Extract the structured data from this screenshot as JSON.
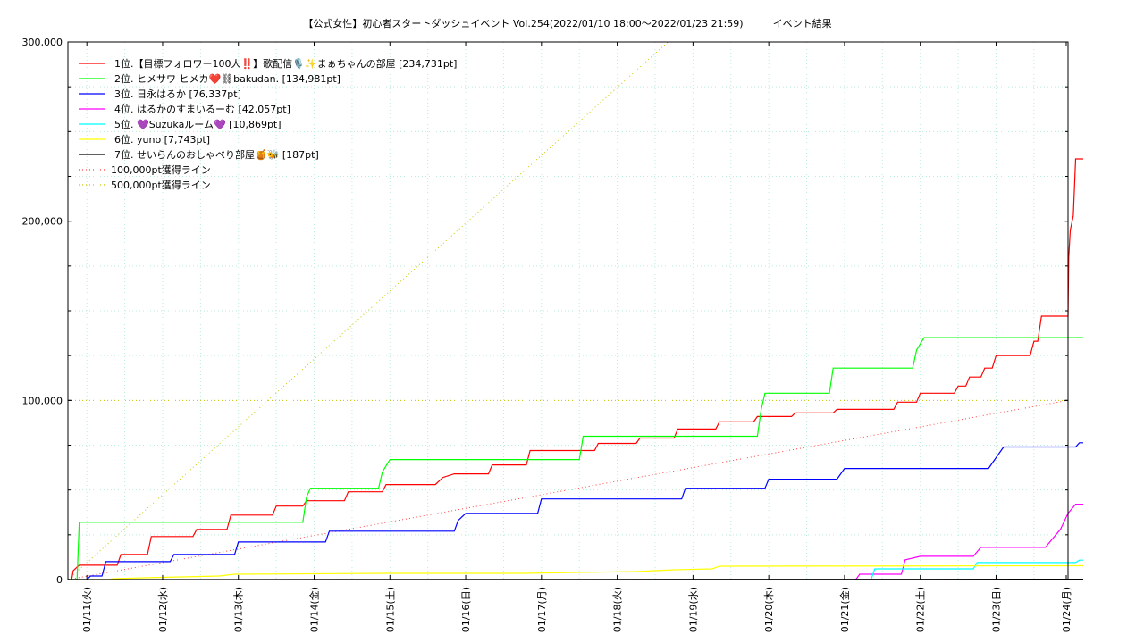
{
  "chart_data": {
    "type": "line",
    "title": "【公式女性】初心者スタートダッシュイベント Vol.254(2022/01/10 18:00～2022/01/23 21:59)　　　イベント結果",
    "x_range_days": [
      0,
      13.2
    ],
    "ylim": [
      0,
      300000
    ],
    "y_ticks": [
      0,
      100000,
      200000,
      300000
    ],
    "y_tick_labels": [
      "0",
      "100,000",
      "200,000",
      "300,000"
    ],
    "x_tick_labels": [
      "01/11(火)",
      "01/12(水)",
      "01/13(木)",
      "01/14(金)",
      "01/15(土)",
      "01/16(日)",
      "01/17(月)",
      "01/18(火)",
      "01/19(水)",
      "01/20(木)",
      "01/21(金)",
      "01/22(土)",
      "01/23(日)",
      "01/24(月)"
    ],
    "x_tick_days": [
      0.25,
      1.25,
      2.25,
      3.25,
      4.25,
      5.25,
      6.25,
      7.25,
      8.25,
      9.25,
      10.25,
      11.25,
      12.25,
      13.25
    ],
    "grid": true,
    "legend_position": "top-left",
    "series": [
      {
        "name": "1位.【目標フォロワー100人‼️】歌配信🎙️✨まぁちゃんの部屋 [234,731pt]",
        "color": "#ff0000",
        "points": [
          [
            0,
            0
          ],
          [
            0.05,
            0
          ],
          [
            0.07,
            5000
          ],
          [
            0.12,
            7000
          ],
          [
            0.15,
            8000
          ],
          [
            0.65,
            8000
          ],
          [
            0.7,
            14000
          ],
          [
            1.05,
            14000
          ],
          [
            1.1,
            24000
          ],
          [
            1.65,
            24000
          ],
          [
            1.7,
            28000
          ],
          [
            2.1,
            28000
          ],
          [
            2.15,
            36000
          ],
          [
            2.7,
            36000
          ],
          [
            2.75,
            41000
          ],
          [
            3.1,
            41000
          ],
          [
            3.15,
            44000
          ],
          [
            3.65,
            44000
          ],
          [
            3.7,
            49000
          ],
          [
            4.15,
            49000
          ],
          [
            4.2,
            53000
          ],
          [
            4.85,
            53000
          ],
          [
            4.95,
            57000
          ],
          [
            5.1,
            59000
          ],
          [
            5.55,
            59000
          ],
          [
            5.6,
            64000
          ],
          [
            6.05,
            64000
          ],
          [
            6.1,
            72000
          ],
          [
            6.95,
            72000
          ],
          [
            7.0,
            76000
          ],
          [
            7.5,
            76000
          ],
          [
            7.55,
            79000
          ],
          [
            8.0,
            79000
          ],
          [
            8.05,
            84000
          ],
          [
            8.55,
            84000
          ],
          [
            8.6,
            88000
          ],
          [
            9.05,
            88000
          ],
          [
            9.1,
            91000
          ],
          [
            9.55,
            91000
          ],
          [
            9.6,
            93000
          ],
          [
            10.1,
            93000
          ],
          [
            10.15,
            95000
          ],
          [
            10.9,
            95000
          ],
          [
            10.95,
            99000
          ],
          [
            11.2,
            99000
          ],
          [
            11.25,
            104000
          ],
          [
            11.7,
            104000
          ],
          [
            11.75,
            108000
          ],
          [
            11.85,
            108000
          ],
          [
            11.9,
            113000
          ],
          [
            12.05,
            113000
          ],
          [
            12.1,
            118000
          ],
          [
            12.2,
            118000
          ],
          [
            12.25,
            125000
          ],
          [
            12.7,
            125000
          ],
          [
            12.75,
            133000
          ],
          [
            12.8,
            133000
          ],
          [
            12.85,
            147000
          ],
          [
            13.2,
            147000
          ],
          [
            13.21,
            180000
          ],
          [
            13.23,
            195000
          ],
          [
            13.27,
            203000
          ],
          [
            13.3,
            234731
          ],
          [
            13.4,
            234731
          ]
        ]
      },
      {
        "name": "2位. ヒメサワ ヒメカ❤️⛓bakudan. [134,981pt]",
        "color": "#00ff00",
        "points": [
          [
            0,
            0
          ],
          [
            0.12,
            0
          ],
          [
            0.15,
            32000
          ],
          [
            3.1,
            32000
          ],
          [
            3.15,
            46000
          ],
          [
            3.2,
            51000
          ],
          [
            4.1,
            51000
          ],
          [
            4.15,
            60000
          ],
          [
            4.25,
            67000
          ],
          [
            6.75,
            67000
          ],
          [
            6.8,
            80000
          ],
          [
            9.1,
            80000
          ],
          [
            9.15,
            95000
          ],
          [
            9.2,
            104000
          ],
          [
            10.05,
            104000
          ],
          [
            10.1,
            118000
          ],
          [
            11.15,
            118000
          ],
          [
            11.2,
            128000
          ],
          [
            11.3,
            135000
          ],
          [
            13.4,
            134981
          ]
        ]
      },
      {
        "name": "3位. 日永はるか [76,337pt]",
        "color": "#0000ff",
        "points": [
          [
            0,
            0
          ],
          [
            0.25,
            0
          ],
          [
            0.3,
            2000
          ],
          [
            0.45,
            2000
          ],
          [
            0.5,
            10000
          ],
          [
            1.35,
            10000
          ],
          [
            1.4,
            14000
          ],
          [
            2.2,
            14000
          ],
          [
            2.25,
            21000
          ],
          [
            3.4,
            21000
          ],
          [
            3.45,
            27000
          ],
          [
            5.1,
            27000
          ],
          [
            5.15,
            33000
          ],
          [
            5.25,
            37000
          ],
          [
            6.2,
            37000
          ],
          [
            6.25,
            45000
          ],
          [
            8.1,
            45000
          ],
          [
            8.15,
            51000
          ],
          [
            9.2,
            51000
          ],
          [
            9.25,
            56000
          ],
          [
            10.15,
            56000
          ],
          [
            10.25,
            62000
          ],
          [
            12.15,
            62000
          ],
          [
            12.25,
            68000
          ],
          [
            12.35,
            74000
          ],
          [
            13.3,
            74000
          ],
          [
            13.35,
            76337
          ],
          [
            13.4,
            76337
          ]
        ]
      },
      {
        "name": "4位. はるかのすまいるーむ [42,057pt]",
        "color": "#ff00ff",
        "points": [
          [
            10.4,
            0
          ],
          [
            10.45,
            3000
          ],
          [
            11.0,
            3000
          ],
          [
            11.05,
            11000
          ],
          [
            11.25,
            13000
          ],
          [
            11.95,
            13000
          ],
          [
            12.05,
            18000
          ],
          [
            12.9,
            18000
          ],
          [
            13.1,
            28000
          ],
          [
            13.2,
            37000
          ],
          [
            13.3,
            42057
          ],
          [
            13.4,
            42057
          ]
        ]
      },
      {
        "name": "5位. 💜Suzukaルーム💜 [10,869pt]",
        "color": "#00ffff",
        "points": [
          [
            10.6,
            0
          ],
          [
            10.65,
            6000
          ],
          [
            11.95,
            6000
          ],
          [
            12.0,
            9500
          ],
          [
            13.3,
            9500
          ],
          [
            13.35,
            10869
          ],
          [
            13.4,
            10869
          ]
        ]
      },
      {
        "name": "6位. yuno [7,743pt]",
        "color": "#ffff00",
        "points": [
          [
            0,
            0
          ],
          [
            0.55,
            0
          ],
          [
            0.6,
            500
          ],
          [
            1.0,
            1000
          ],
          [
            2.0,
            2000
          ],
          [
            2.2,
            3000
          ],
          [
            4.2,
            3500
          ],
          [
            6.0,
            3500
          ],
          [
            7.5,
            4500
          ],
          [
            8.0,
            5500
          ],
          [
            8.5,
            6000
          ],
          [
            8.6,
            7500
          ],
          [
            13.4,
            7743
          ]
        ]
      },
      {
        "name": "7位. せいらんのおしゃべり部屋🍯🐝 [187pt]",
        "color": "#000000",
        "points": [
          [
            0,
            0
          ],
          [
            13.4,
            187
          ]
        ]
      }
    ],
    "reference_lines": [
      {
        "name": "100,000pt獲得ライン",
        "color": "#ff4040",
        "style": "dotted",
        "points": [
          [
            0,
            0
          ],
          [
            13.2,
            100000
          ]
        ]
      },
      {
        "name": "500,000pt獲得ライン",
        "color": "#c8c800",
        "style": "dotted",
        "points": [
          [
            0,
            0
          ],
          [
            13.2,
            500000
          ]
        ]
      }
    ],
    "level_lines": [
      {
        "value": 100000,
        "color": "#c8c800"
      }
    ]
  }
}
